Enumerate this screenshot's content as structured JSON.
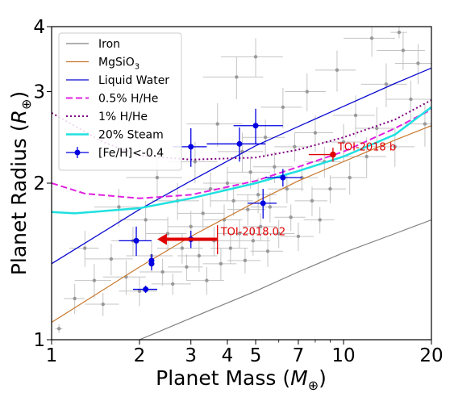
{
  "chart_data": {
    "type": "scatter",
    "title": "",
    "xlabel": "Planet Mass (",
    "xlabel_symbol": "M",
    "xlabel_sub": "⊕",
    "xlabel_close": ")",
    "ylabel": "Planet Radius (",
    "ylabel_symbol": "R",
    "ylabel_sub": "⊕",
    "ylabel_close": ")",
    "xscale": "log",
    "yscale": "log",
    "xlim": [
      1,
      20
    ],
    "ylim": [
      1,
      4
    ],
    "xticks": [
      {
        "value": 1,
        "label": "1"
      },
      {
        "value": 2,
        "label": "2"
      },
      {
        "value": 3,
        "label": "3"
      },
      {
        "value": 4,
        "label": "4"
      },
      {
        "value": 5,
        "label": "5"
      },
      {
        "value": 7,
        "label": "7"
      },
      {
        "value": 10,
        "label": "10"
      },
      {
        "value": 20,
        "label": "20"
      }
    ],
    "yticks": [
      {
        "value": 1,
        "label": "1"
      },
      {
        "value": 2,
        "label": "2"
      },
      {
        "value": 3,
        "label": "3"
      },
      {
        "value": 4,
        "label": "4"
      }
    ],
    "legend_position": "top-left",
    "grid": false,
    "curves": [
      {
        "name": "Iron",
        "color": "#808080",
        "dash": "",
        "width": 1.2,
        "points": [
          [
            2,
            1.0
          ],
          [
            3,
            1.1
          ],
          [
            5,
            1.24
          ],
          [
            7,
            1.35
          ],
          [
            10,
            1.47
          ],
          [
            15,
            1.6
          ],
          [
            20,
            1.7
          ]
        ]
      },
      {
        "name": "MgSiO",
        "name_sub": "3",
        "color": "#c8782e",
        "dash": "",
        "width": 1.2,
        "points": [
          [
            1,
            1.08
          ],
          [
            2,
            1.38
          ],
          [
            3,
            1.58
          ],
          [
            5,
            1.84
          ],
          [
            7,
            2.02
          ],
          [
            10,
            2.2
          ],
          [
            15,
            2.42
          ],
          [
            20,
            2.58
          ]
        ]
      },
      {
        "name": "Liquid Water",
        "color": "#0a0ad0",
        "dash": "",
        "width": 1.3,
        "points": [
          [
            1,
            1.4
          ],
          [
            2,
            1.78
          ],
          [
            3,
            2.02
          ],
          [
            5,
            2.36
          ],
          [
            7,
            2.57
          ],
          [
            10,
            2.81
          ],
          [
            15,
            3.11
          ],
          [
            20,
            3.33
          ]
        ]
      },
      {
        "name": "0.5% H/He",
        "color": "#e020e0",
        "dash": "8,4",
        "width": 2,
        "points": [
          [
            1,
            2.0
          ],
          [
            1.3,
            1.91
          ],
          [
            2,
            1.87
          ],
          [
            3,
            1.9
          ],
          [
            5,
            2.02
          ],
          [
            7,
            2.15
          ],
          [
            10,
            2.3
          ],
          [
            15,
            2.55
          ],
          [
            20,
            2.77
          ]
        ]
      },
      {
        "name": "1% H/He",
        "color": "#800080",
        "dash": "2,3",
        "width": 2,
        "points": [
          [
            1,
            2.73
          ],
          [
            1.5,
            2.4
          ],
          [
            2,
            2.26
          ],
          [
            3,
            2.22
          ],
          [
            5,
            2.24
          ],
          [
            7,
            2.32
          ],
          [
            10,
            2.45
          ],
          [
            15,
            2.65
          ],
          [
            20,
            2.89
          ]
        ]
      },
      {
        "name": "20% Steam",
        "color": "#20e0e0",
        "dash": "",
        "width": 2.5,
        "points": [
          [
            1,
            1.76
          ],
          [
            1.2,
            1.75
          ],
          [
            2,
            1.79
          ],
          [
            3,
            1.87
          ],
          [
            5,
            2.0
          ],
          [
            7,
            2.11
          ],
          [
            10,
            2.25
          ],
          [
            15,
            2.48
          ],
          [
            20,
            2.8
          ]
        ]
      }
    ],
    "background_points": [
      {
        "x": 1.06,
        "y": 1.05,
        "xe": 0.03,
        "ye": 0.02
      },
      {
        "x": 1.2,
        "y": 1.2,
        "xe": 0.1,
        "ye": 0.08
      },
      {
        "x": 1.3,
        "y": 1.5,
        "xe": 0.15,
        "ye": 0.12
      },
      {
        "x": 1.4,
        "y": 1.3,
        "xe": 0.2,
        "ye": 0.1
      },
      {
        "x": 1.5,
        "y": 1.17,
        "xe": 0.2,
        "ye": 0.06
      },
      {
        "x": 1.6,
        "y": 1.43,
        "xe": 0.3,
        "ye": 0.1
      },
      {
        "x": 1.7,
        "y": 1.8,
        "xe": 0.3,
        "ye": 0.15
      },
      {
        "x": 1.8,
        "y": 1.32,
        "xe": 0.3,
        "ye": 0.1
      },
      {
        "x": 1.9,
        "y": 1.55,
        "xe": 0.3,
        "ye": 0.1
      },
      {
        "x": 2.0,
        "y": 1.24,
        "xe": 0.3,
        "ye": 0.08
      },
      {
        "x": 2.1,
        "y": 1.7,
        "xe": 0.4,
        "ye": 0.15
      },
      {
        "x": 2.2,
        "y": 1.45,
        "xe": 0.4,
        "ye": 0.1
      },
      {
        "x": 2.3,
        "y": 2.05,
        "xe": 0.5,
        "ye": 0.2
      },
      {
        "x": 2.4,
        "y": 1.35,
        "xe": 0.4,
        "ye": 0.08
      },
      {
        "x": 2.5,
        "y": 1.6,
        "xe": 0.4,
        "ye": 0.12
      },
      {
        "x": 2.6,
        "y": 1.28,
        "xe": 0.4,
        "ye": 0.06
      },
      {
        "x": 2.7,
        "y": 1.85,
        "xe": 0.5,
        "ye": 0.15
      },
      {
        "x": 2.8,
        "y": 1.5,
        "xe": 0.5,
        "ye": 0.1
      },
      {
        "x": 2.9,
        "y": 1.38,
        "xe": 0.4,
        "ye": 0.08
      },
      {
        "x": 3.0,
        "y": 1.65,
        "xe": 0.5,
        "ye": 0.12
      },
      {
        "x": 3.1,
        "y": 2.2,
        "xe": 0.6,
        "ye": 0.2
      },
      {
        "x": 3.2,
        "y": 1.45,
        "xe": 0.5,
        "ye": 0.1
      },
      {
        "x": 3.3,
        "y": 1.75,
        "xe": 0.6,
        "ye": 0.12
      },
      {
        "x": 3.4,
        "y": 1.3,
        "xe": 0.5,
        "ye": 0.08
      },
      {
        "x": 3.5,
        "y": 1.95,
        "xe": 0.6,
        "ye": 0.15
      },
      {
        "x": 3.6,
        "y": 1.55,
        "xe": 0.6,
        "ye": 0.1
      },
      {
        "x": 3.7,
        "y": 2.6,
        "xe": 0.8,
        "ye": 0.25
      },
      {
        "x": 3.8,
        "y": 1.4,
        "xe": 0.5,
        "ye": 0.1
      },
      {
        "x": 3.9,
        "y": 1.7,
        "xe": 0.6,
        "ye": 0.12
      },
      {
        "x": 4.0,
        "y": 2.0,
        "xe": 0.7,
        "ye": 0.15
      },
      {
        "x": 4.1,
        "y": 1.5,
        "xe": 0.6,
        "ye": 0.1
      },
      {
        "x": 4.2,
        "y": 1.85,
        "xe": 0.7,
        "ye": 0.12
      },
      {
        "x": 4.3,
        "y": 3.2,
        "xe": 1.0,
        "ye": 0.3
      },
      {
        "x": 4.4,
        "y": 1.6,
        "xe": 0.7,
        "ye": 0.1
      },
      {
        "x": 4.5,
        "y": 2.3,
        "xe": 0.8,
        "ye": 0.2
      },
      {
        "x": 4.6,
        "y": 1.42,
        "xe": 0.6,
        "ye": 0.08
      },
      {
        "x": 4.7,
        "y": 1.78,
        "xe": 0.7,
        "ye": 0.12
      },
      {
        "x": 4.8,
        "y": 2.1,
        "xe": 0.8,
        "ye": 0.15
      },
      {
        "x": 4.9,
        "y": 1.55,
        "xe": 0.7,
        "ye": 0.1
      },
      {
        "x": 5.0,
        "y": 3.5,
        "xe": 1.2,
        "ye": 0.3
      },
      {
        "x": 5.1,
        "y": 1.9,
        "xe": 0.8,
        "ye": 0.15
      },
      {
        "x": 5.2,
        "y": 1.65,
        "xe": 0.7,
        "ye": 0.1
      },
      {
        "x": 5.4,
        "y": 2.45,
        "xe": 0.9,
        "ye": 0.2
      },
      {
        "x": 5.5,
        "y": 1.48,
        "xe": 0.7,
        "ye": 0.1
      },
      {
        "x": 5.6,
        "y": 1.8,
        "xe": 0.8,
        "ye": 0.12
      },
      {
        "x": 5.8,
        "y": 2.15,
        "xe": 0.9,
        "ye": 0.15
      },
      {
        "x": 6.0,
        "y": 1.6,
        "xe": 0.8,
        "ye": 0.1
      },
      {
        "x": 6.2,
        "y": 2.8,
        "xe": 1.0,
        "ye": 0.25
      },
      {
        "x": 6.4,
        "y": 1.95,
        "xe": 0.9,
        "ye": 0.12
      },
      {
        "x": 6.6,
        "y": 1.72,
        "xe": 0.8,
        "ye": 0.1
      },
      {
        "x": 6.8,
        "y": 2.35,
        "xe": 1.0,
        "ye": 0.15
      },
      {
        "x": 7.0,
        "y": 1.58,
        "xe": 0.9,
        "ye": 0.1
      },
      {
        "x": 7.2,
        "y": 2.05,
        "xe": 1.0,
        "ye": 0.12
      },
      {
        "x": 7.5,
        "y": 3.0,
        "xe": 1.2,
        "ye": 0.25
      },
      {
        "x": 7.8,
        "y": 1.85,
        "xe": 1.0,
        "ye": 0.12
      },
      {
        "x": 8.0,
        "y": 2.5,
        "xe": 1.2,
        "ye": 0.2
      },
      {
        "x": 8.3,
        "y": 1.7,
        "xe": 1.0,
        "ye": 0.1
      },
      {
        "x": 8.6,
        "y": 2.2,
        "xe": 1.2,
        "ye": 0.15
      },
      {
        "x": 9.0,
        "y": 1.95,
        "xe": 1.2,
        "ye": 0.12
      },
      {
        "x": 9.5,
        "y": 3.3,
        "xe": 1.5,
        "ye": 0.3
      },
      {
        "x": 10.0,
        "y": 2.4,
        "xe": 1.5,
        "ye": 0.2
      },
      {
        "x": 10.5,
        "y": 2.05,
        "xe": 1.5,
        "ye": 0.15
      },
      {
        "x": 11.0,
        "y": 2.7,
        "xe": 1.8,
        "ye": 0.25
      },
      {
        "x": 12.0,
        "y": 2.25,
        "xe": 2.0,
        "ye": 0.2
      },
      {
        "x": 12.5,
        "y": 3.8,
        "xe": 2.5,
        "ye": 0.3
      },
      {
        "x": 13.0,
        "y": 2.55,
        "xe": 2.0,
        "ye": 0.25
      },
      {
        "x": 14.0,
        "y": 3.1,
        "xe": 2.5,
        "ye": 0.3
      },
      {
        "x": 15.0,
        "y": 2.35,
        "xe": 2.5,
        "ye": 0.2
      },
      {
        "x": 16.0,
        "y": 3.6,
        "xe": 3.0,
        "ye": 0.3
      },
      {
        "x": 17.0,
        "y": 2.9,
        "xe": 3.0,
        "ye": 0.25
      },
      {
        "x": 18.0,
        "y": 3.4,
        "xe": 3.0,
        "ye": 0.3
      },
      {
        "x": 19.0,
        "y": 2.6,
        "xe": 3.0,
        "ye": 0.25
      },
      {
        "x": 15.5,
        "y": 3.9,
        "xe": 1.0,
        "ye": 0.1
      }
    ],
    "series": [
      {
        "name": "[Fe/H]<-0.4",
        "color": "#0000e0",
        "marker": "circle",
        "points": [
          {
            "x": 3.0,
            "y": 2.35,
            "xl": 0.4,
            "xh": 0.4,
            "yl": 0.2,
            "yh": 0.2
          },
          {
            "x": 4.4,
            "y": 2.38,
            "xl": 1.0,
            "xh": 1.0,
            "yl": 0.18,
            "yh": 0.18
          },
          {
            "x": 5.0,
            "y": 2.58,
            "xl": 0.8,
            "xh": 1.2,
            "yl": 0.2,
            "yh": 0.2
          },
          {
            "x": 6.2,
            "y": 2.05,
            "xl": 0.8,
            "xh": 1.0,
            "yl": 0.08,
            "yh": 0.08
          },
          {
            "x": 5.3,
            "y": 1.83,
            "xl": 0.6,
            "xh": 0.6,
            "yl": 0.12,
            "yh": 0.12
          },
          {
            "x": 1.95,
            "y": 1.55,
            "xl": 0.25,
            "xh": 0.25,
            "yl": 0.1,
            "yh": 0.1
          },
          {
            "x": 3.0,
            "y": 1.56,
            "xl": 0.2,
            "xh": 0.2,
            "yl": 0.06,
            "yh": 0.06
          },
          {
            "x": 2.2,
            "y": 1.42,
            "xl": 0.05,
            "xh": 0.05,
            "yl": 0.04,
            "yh": 0.04
          },
          {
            "x": 2.2,
            "y": 1.4,
            "xl": 0.05,
            "xh": 0.05,
            "yl": 0.04,
            "yh": 0.04
          },
          {
            "x": 2.1,
            "y": 1.25,
            "xl": 0.2,
            "xh": 0.2,
            "yl": 0.02,
            "yh": 0.02
          }
        ]
      }
    ],
    "highlights": [
      {
        "name": "TOI-2018 b",
        "label": "TOI-2018 b",
        "x": 9.2,
        "y": 2.27,
        "xl": 1.6,
        "xh": 0,
        "yl": 0.07,
        "yh": 0.07,
        "color": "#e00000"
      },
      {
        "name": "TOI-2018.02",
        "label": "TOI-2018.02",
        "x": 3.7,
        "y": 1.56,
        "color": "#e00000",
        "upper_limit": true,
        "arrow_to_x": 2.3,
        "yl": 0.1,
        "yh": 0.1
      }
    ]
  }
}
